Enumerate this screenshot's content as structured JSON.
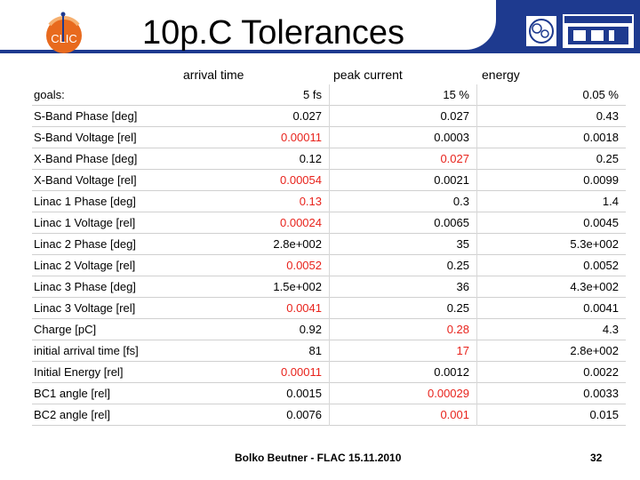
{
  "header": {
    "title": "10p.C Tolerances"
  },
  "columns": {
    "arrival": "arrival time",
    "peak": "peak current",
    "energy": "energy"
  },
  "rows": [
    {
      "label": "goals:",
      "v": [
        "5 fs",
        "15 %",
        "0.05 %"
      ],
      "red": [
        false,
        false,
        false
      ]
    },
    {
      "label": "S-Band Phase [deg]",
      "v": [
        "0.027",
        "0.027",
        "0.43"
      ],
      "red": [
        false,
        false,
        false
      ]
    },
    {
      "label": "S-Band Voltage [rel]",
      "v": [
        "0.00011",
        "0.0003",
        "0.0018"
      ],
      "red": [
        true,
        false,
        false
      ]
    },
    {
      "label": "X-Band Phase [deg]",
      "v": [
        "0.12",
        "0.027",
        "0.25"
      ],
      "red": [
        false,
        true,
        false
      ]
    },
    {
      "label": "X-Band Voltage [rel]",
      "v": [
        "0.00054",
        "0.0021",
        "0.0099"
      ],
      "red": [
        true,
        false,
        false
      ]
    },
    {
      "label": "Linac 1 Phase [deg]",
      "v": [
        "0.13",
        "0.3",
        "1.4"
      ],
      "red": [
        true,
        false,
        false
      ]
    },
    {
      "label": "Linac 1 Voltage [rel]",
      "v": [
        "0.00024",
        "0.0065",
        "0.0045"
      ],
      "red": [
        true,
        false,
        false
      ]
    },
    {
      "label": "Linac 2 Phase [deg]",
      "v": [
        "2.8e+002",
        "35",
        "5.3e+002"
      ],
      "red": [
        false,
        false,
        false
      ]
    },
    {
      "label": "Linac 2 Voltage [rel]",
      "v": [
        "0.0052",
        "0.25",
        "0.0052"
      ],
      "red": [
        true,
        false,
        false
      ]
    },
    {
      "label": "Linac 3 Phase [deg]",
      "v": [
        "1.5e+002",
        "36",
        "4.3e+002"
      ],
      "red": [
        false,
        false,
        false
      ]
    },
    {
      "label": "Linac 3 Voltage [rel]",
      "v": [
        "0.0041",
        "0.25",
        "0.0041"
      ],
      "red": [
        true,
        false,
        false
      ]
    },
    {
      "label": "Charge [pC]",
      "v": [
        "0.92",
        "0.28",
        "4.3"
      ],
      "red": [
        false,
        true,
        false
      ]
    },
    {
      "label": "initial arrival time [fs]",
      "v": [
        "81",
        "17",
        "2.8e+002"
      ],
      "red": [
        false,
        true,
        false
      ]
    },
    {
      "label": "Initial Energy [rel]",
      "v": [
        "0.00011",
        "0.0012",
        "0.0022"
      ],
      "red": [
        true,
        false,
        false
      ]
    },
    {
      "label": "BC1 angle [rel]",
      "v": [
        "0.0015",
        "0.00029",
        "0.0033"
      ],
      "red": [
        false,
        true,
        false
      ]
    },
    {
      "label": "BC2 angle [rel]",
      "v": [
        "0.0076",
        "0.001",
        "0.015"
      ],
      "red": [
        false,
        true,
        false
      ]
    }
  ],
  "footer": {
    "author": "Bolko Beutner - FLAC 15.11.2010",
    "page": "32"
  },
  "colors": {
    "accent_blue": "#1e3a8f",
    "highlight_red": "#e8231c"
  },
  "icons": {
    "left_logo": "clic-logo",
    "right_logo_1": "cern-logo",
    "right_logo_2": "psi-logo"
  }
}
